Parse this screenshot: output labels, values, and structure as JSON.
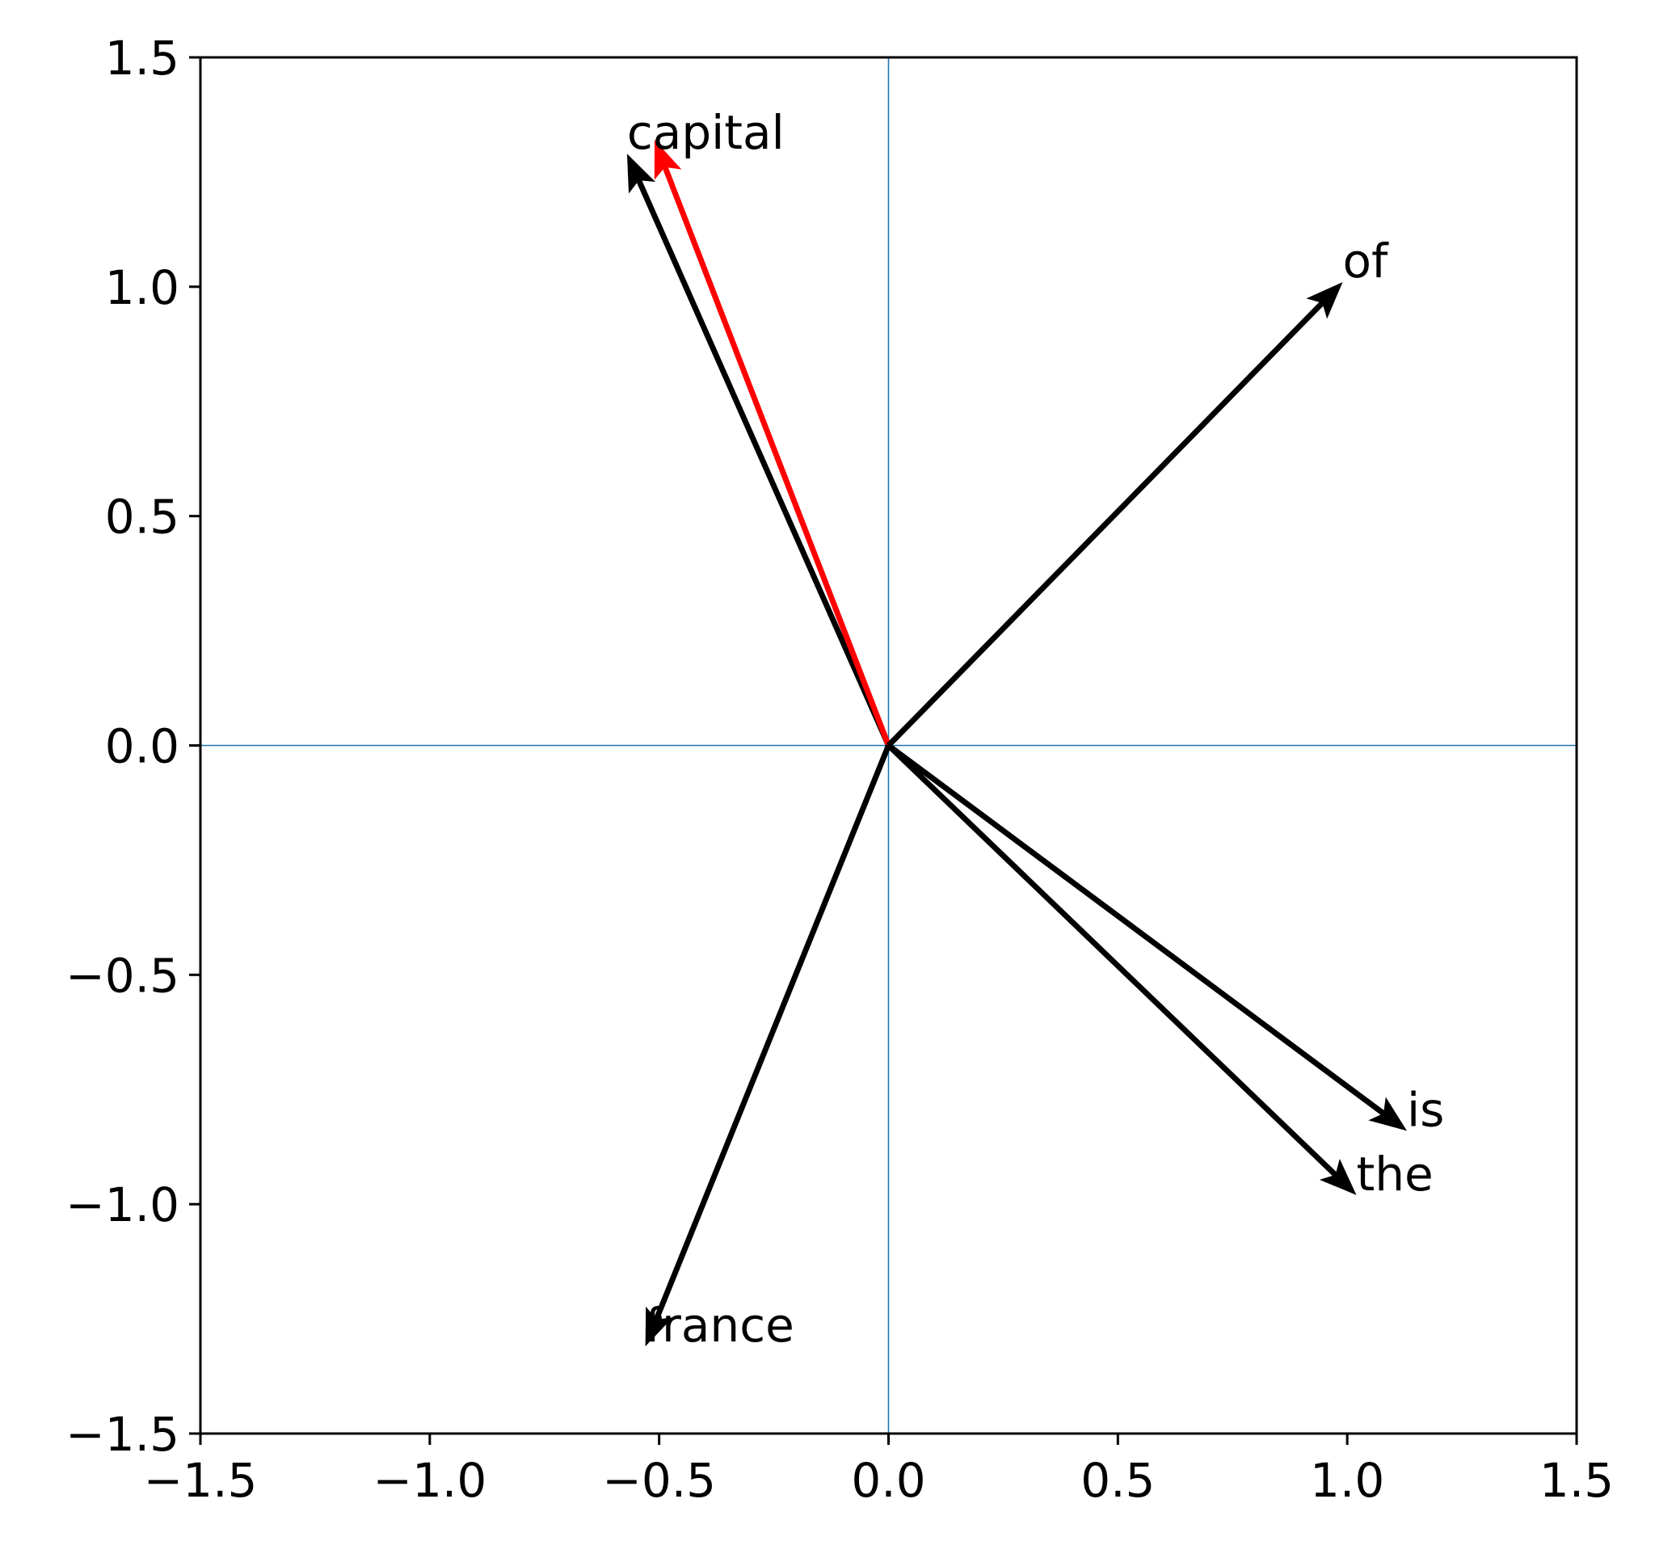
{
  "chart_data": {
    "type": "quiver",
    "title": "",
    "xlabel": "",
    "ylabel": "",
    "xlim": [
      -1.5,
      1.5
    ],
    "ylim": [
      -1.5,
      1.5
    ],
    "xticks": [
      "−1.5",
      "−1.0",
      "−0.5",
      "0.0",
      "0.5",
      "1.0",
      "1.5"
    ],
    "yticks": [
      "−1.5",
      "−1.0",
      "−0.5",
      "0.0",
      "0.5",
      "1.0",
      "1.5"
    ],
    "xtick_values": [
      -1.5,
      -1.0,
      -0.5,
      0.0,
      0.5,
      1.0,
      1.5
    ],
    "ytick_values": [
      -1.5,
      -1.0,
      -0.5,
      0.0,
      0.5,
      1.0,
      1.5
    ],
    "reference_lines": {
      "x": 0,
      "y": 0,
      "color": "#1f77b4"
    },
    "vectors": [
      {
        "name": "capital",
        "x": -0.57,
        "y": 1.29,
        "color": "#000000",
        "label": "capital"
      },
      {
        "name": "capital-highlight",
        "x": -0.51,
        "y": 1.32,
        "color": "#ff0000",
        "label": ""
      },
      {
        "name": "of",
        "x": 0.99,
        "y": 1.01,
        "color": "#000000",
        "label": "of"
      },
      {
        "name": "is",
        "x": 1.13,
        "y": -0.84,
        "color": "#000000",
        "label": "is"
      },
      {
        "name": "the",
        "x": 1.02,
        "y": -0.98,
        "color": "#000000",
        "label": "the"
      },
      {
        "name": "france",
        "x": -0.53,
        "y": -1.31,
        "color": "#000000",
        "label": "france"
      }
    ],
    "grid": false,
    "legend": "none"
  }
}
